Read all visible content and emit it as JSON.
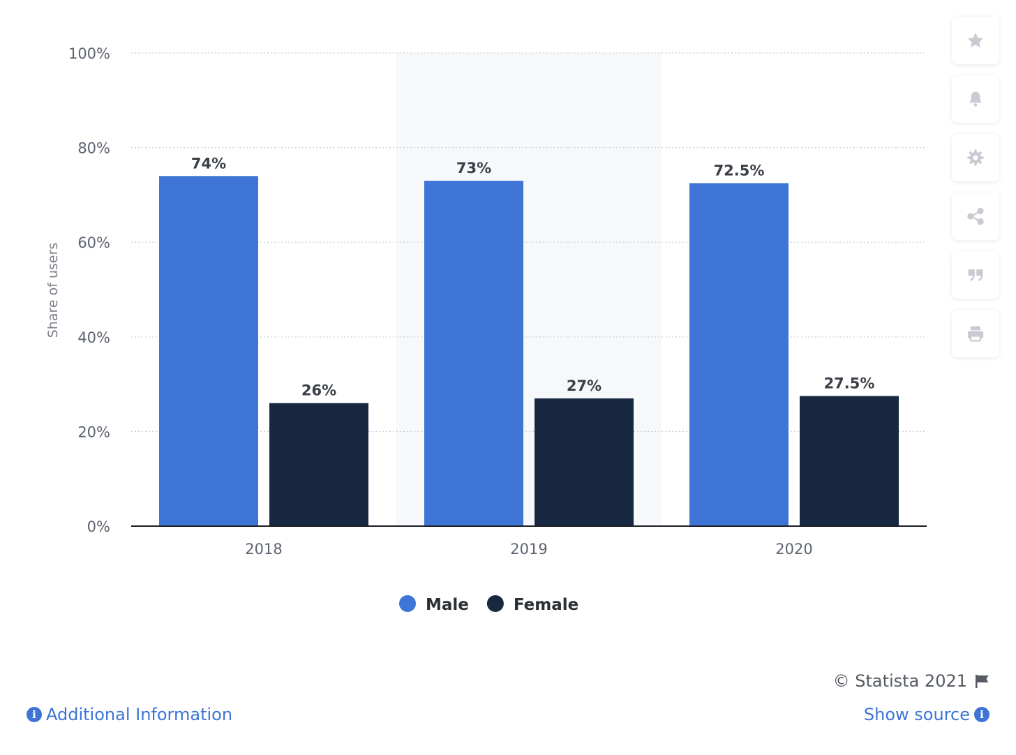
{
  "chart_data": {
    "type": "bar",
    "categories": [
      "2018",
      "2019",
      "2020"
    ],
    "series": [
      {
        "name": "Male",
        "values": [
          74,
          73,
          72.5
        ],
        "labels": [
          "74%",
          "73%",
          "72.5%"
        ],
        "color": "#3e75d6"
      },
      {
        "name": "Female",
        "values": [
          26,
          27,
          27.5
        ],
        "labels": [
          "26%",
          "27%",
          "27.5%"
        ],
        "color": "#172840"
      }
    ],
    "ylabel": "Share of users",
    "ylim": [
      0,
      100
    ],
    "yticks": [
      0,
      20,
      40,
      60,
      80,
      100
    ],
    "ytick_labels": [
      "0%",
      "20%",
      "40%",
      "60%",
      "80%",
      "100%"
    ],
    "grid": true,
    "highlighted_category": "2019",
    "legend_position": "bottom-center"
  },
  "toolbar": {
    "icons": [
      "star-icon",
      "bell-icon",
      "gear-icon",
      "share-icon",
      "quote-icon",
      "print-icon"
    ]
  },
  "footer": {
    "copyright": "© Statista 2021",
    "additional_info": "Additional Information",
    "show_source": "Show source"
  }
}
